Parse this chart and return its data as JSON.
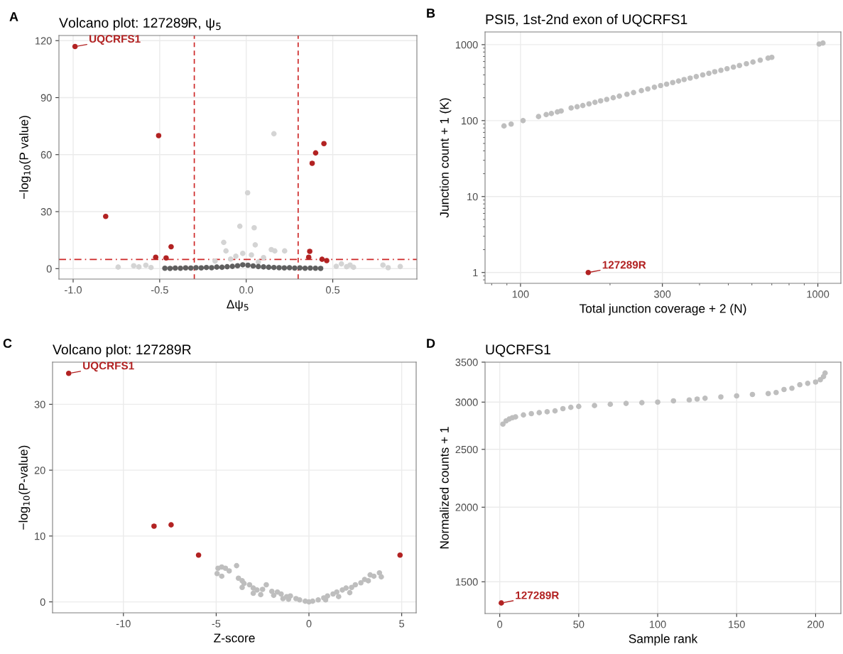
{
  "chart_data": [
    {
      "type": "scatter",
      "title": "Volcano plot: 127289R, ψ$_{5}$",
      "xlabel": "Δψ$_{5}$",
      "ylabel": "−log$_{10}$(P value)",
      "xlim": [
        -1.082,
        0.986
      ],
      "ylim": [
        -5.5,
        122.7
      ],
      "xticks": [
        {
          "value": -1.0,
          "label": "-1.0"
        },
        {
          "value": -0.5,
          "label": "-0.5"
        },
        {
          "value": 0.0,
          "label": "0.0"
        },
        {
          "value": 0.5,
          "label": "0.5"
        }
      ],
      "yticks": [
        0,
        30,
        60,
        90,
        120
      ],
      "grid": true,
      "marker": "circle",
      "series": [
        {
          "color": "#d4d4d4",
          "x": [
            0.16,
            0.008,
            -0.037,
            0.046,
            -0.13,
            0.052,
            -0.117,
            0.145,
            0.222,
            0.165,
            -0.74,
            -0.65,
            -0.62,
            -0.58,
            -0.55,
            0.52,
            0.55,
            0.58,
            0.6,
            0.62,
            0.79,
            0.82,
            0.89,
            -0.06,
            -0.02,
            0.03,
            0.1,
            -0.18,
            0.07,
            -0.09
          ],
          "values": [
            71.0,
            39.9,
            22.3,
            21.5,
            13.8,
            12.5,
            9.3,
            10.0,
            9.3,
            9.3,
            0.8,
            1.5,
            0.9,
            1.8,
            0.6,
            1.2,
            2.5,
            1.0,
            1.9,
            0.7,
            1.9,
            0.5,
            1.1,
            6.5,
            8.0,
            7.2,
            5.8,
            4.0,
            3.5,
            5.0
          ]
        },
        {
          "color": "#5f5f5f",
          "x": [
            -0.47,
            -0.44,
            -0.41,
            -0.38,
            -0.35,
            -0.32,
            -0.29,
            -0.26,
            -0.23,
            -0.2,
            -0.17,
            -0.14,
            -0.11,
            -0.08,
            -0.05,
            -0.02,
            0.01,
            0.04,
            0.07,
            0.1,
            0.13,
            0.16,
            0.19,
            0.22,
            0.25,
            0.28,
            0.31,
            0.34,
            0.37,
            0.4,
            0.43
          ],
          "values": [
            0.2,
            0.1,
            0.3,
            0.2,
            0.4,
            0.3,
            0.5,
            0.4,
            0.6,
            0.5,
            0.8,
            0.7,
            1.0,
            1.2,
            1.5,
            2.0,
            1.8,
            1.4,
            1.1,
            0.9,
            0.7,
            0.6,
            0.5,
            0.4,
            0.5,
            0.3,
            0.4,
            0.2,
            0.3,
            0.2,
            0.1
          ]
        },
        {
          "color": "#b22222",
          "x": [
            -0.989,
            -0.812,
            -0.506,
            -0.523,
            -0.463,
            -0.434,
            0.367,
            0.361,
            0.381,
            0.401,
            0.449,
            0.438,
            0.465
          ],
          "values": [
            116.9,
            27.5,
            70.0,
            6.0,
            5.6,
            11.5,
            9.1,
            6.0,
            55.4,
            60.9,
            65.8,
            4.9,
            4.2
          ]
        }
      ],
      "ref_lines": [
        {
          "axis": "x",
          "value": -0.3,
          "color": "#cd2626",
          "line_style": "dashed"
        },
        {
          "axis": "x",
          "value": 0.3,
          "color": "#cd2626",
          "line_style": "dashed"
        },
        {
          "axis": "y",
          "value": 4.8,
          "color": "#cd2626",
          "line_style": "dashdot"
        }
      ],
      "annotations": [
        "A",
        {
          "text": "UQCRFS1",
          "x": -0.989,
          "y": 116.9
        }
      ]
    },
    {
      "type": "scatter",
      "title": "PSI5, 1st-2nd exon of UQCRFS1",
      "xlabel": "Total junction coverage + 2 (N)",
      "ylabel": "Junction count + 1 (K)",
      "log": "xy",
      "xlim": [
        76,
        1195
      ],
      "ylim": [
        0.72,
        1470
      ],
      "xticks": [
        100,
        300,
        1000
      ],
      "yticks": [
        1,
        10,
        100,
        1000
      ],
      "grid": true,
      "marker": "circle",
      "series": [
        {
          "color": "#bebebe",
          "x": [
            88,
            93,
            102,
            115,
            122,
            127,
            133,
            137,
            148,
            155,
            162,
            170,
            178,
            186,
            195,
            205,
            215,
            228,
            240,
            255,
            268,
            282,
            296,
            310,
            325,
            340,
            355,
            372,
            390,
            410,
            430,
            450,
            472,
            495,
            520,
            545,
            575,
            605,
            640,
            680,
            700,
            1010,
            1040
          ],
          "values": [
            85,
            90,
            100,
            113,
            120,
            124,
            130,
            134,
            147,
            152,
            158,
            166,
            174,
            182,
            190,
            200,
            210,
            222,
            234,
            248,
            261,
            275,
            289,
            302,
            317,
            332,
            347,
            363,
            380,
            400,
            420,
            440,
            460,
            483,
            507,
            532,
            561,
            590,
            624,
            664,
            680,
            1020,
            1050
          ]
        },
        {
          "color": "#b22222",
          "x": [
            169
          ],
          "values": [
            1
          ]
        }
      ],
      "annotations": [
        "B",
        {
          "text": "127289R",
          "x": 169,
          "y": 1
        }
      ]
    },
    {
      "type": "scatter",
      "title": "Volcano plot: 127289R",
      "xlabel": "Z-score",
      "ylabel": "−log$_{10}$(P-value)",
      "xlim": [
        -13.82,
        5.78
      ],
      "ylim": [
        -1.66,
        36.4
      ],
      "xticks": [
        -10,
        -5,
        0,
        5
      ],
      "yticks": [
        0,
        10,
        20,
        30
      ],
      "grid": true,
      "marker": "circle",
      "series": [
        {
          "color": "#bebebe",
          "x": [
            -4.95,
            -4.9,
            -4.7,
            -4.5,
            -4.7,
            -4.3,
            -3.9,
            -3.8,
            -3.6,
            -3.5,
            -3.6,
            -3.2,
            -3.0,
            -2.8,
            -2.5,
            -2.3,
            -2.0,
            -1.7,
            -1.5,
            -1.2,
            -1.0,
            -0.7,
            -0.5,
            -0.2,
            0.0,
            0.2,
            0.5,
            0.8,
            1.0,
            1.3,
            1.5,
            1.8,
            2.0,
            2.3,
            2.5,
            2.8,
            3.0,
            3.2,
            3.3,
            3.5,
            3.8,
            3.9,
            -1.9,
            -1.1,
            0.9,
            1.6,
            2.2,
            -3.0,
            -2.6,
            -1.4
          ],
          "values": [
            4.3,
            5.1,
            5.3,
            5.1,
            3.9,
            4.7,
            5.5,
            3.6,
            3.2,
            2.8,
            2.2,
            2.6,
            2.1,
            1.8,
            1.9,
            2.6,
            1.6,
            1.5,
            1.2,
            0.8,
            0.9,
            0.5,
            0.3,
            0.1,
            0.0,
            0.1,
            0.3,
            0.6,
            0.9,
            1.2,
            1.5,
            1.8,
            2.1,
            2.2,
            2.6,
            2.9,
            3.4,
            3.2,
            4.1,
            3.9,
            4.4,
            3.8,
            1.0,
            0.4,
            0.3,
            0.8,
            1.4,
            1.3,
            1.1,
            0.5
          ]
        },
        {
          "color": "#b22222",
          "x": [
            -12.95,
            -8.35,
            -7.43,
            -5.95,
            4.91
          ],
          "values": [
            34.7,
            11.5,
            11.7,
            7.1,
            7.1
          ]
        }
      ],
      "annotations": [
        "C",
        {
          "text": "UQCRFS1",
          "x": -12.95,
          "y": 34.7
        }
      ]
    },
    {
      "type": "scatter",
      "title": "UQCRFS1",
      "xlabel": "Sample rank",
      "ylabel": "Normalized counts + 1",
      "log": "y",
      "xlim": [
        -9.3,
        216
      ],
      "ylim": [
        1327,
        3500
      ],
      "xticks": [
        0,
        50,
        100,
        150,
        200
      ],
      "yticks": [
        1500,
        2000,
        2500,
        3000,
        3500
      ],
      "grid": true,
      "marker": "circle",
      "series": [
        {
          "color": "#bebebe",
          "x": [
            2,
            4,
            6,
            8,
            10,
            15,
            20,
            25,
            30,
            35,
            40,
            45,
            50,
            60,
            70,
            80,
            90,
            100,
            110,
            120,
            125,
            130,
            140,
            150,
            160,
            170,
            175,
            180,
            185,
            190,
            195,
            200,
            203,
            205,
            206
          ],
          "values": [
            2756,
            2790,
            2810,
            2825,
            2833,
            2855,
            2870,
            2880,
            2890,
            2900,
            2925,
            2940,
            2950,
            2960,
            2975,
            2985,
            2993,
            3000,
            3015,
            3025,
            3035,
            3045,
            3060,
            3073,
            3090,
            3100,
            3113,
            3150,
            3165,
            3208,
            3225,
            3242,
            3270,
            3310,
            3356
          ]
        },
        {
          "color": "#b22222",
          "x": [
            1
          ],
          "values": [
            1382
          ]
        }
      ],
      "annotations": [
        "D",
        {
          "text": "127289R",
          "x": 1,
          "y": 1382
        }
      ]
    }
  ]
}
